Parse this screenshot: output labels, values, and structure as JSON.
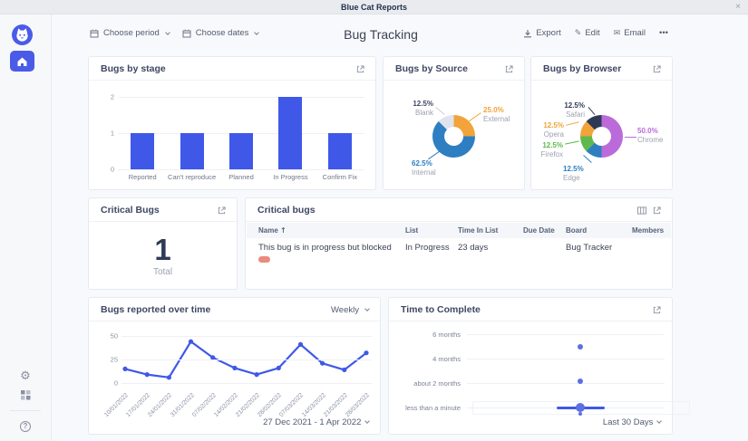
{
  "window": {
    "title": "Blue Cat Reports",
    "close": "×"
  },
  "sidebar": {
    "logo": "blue-cat-logo",
    "help_glyph": "?",
    "gear_glyph": "⚙"
  },
  "header": {
    "choose_period": "Choose period",
    "choose_dates": "Choose dates",
    "title": "Bug Tracking",
    "export_label": "Export",
    "edit_label": "Edit",
    "email_label": "Email",
    "more_label": "•••",
    "pencil_glyph": "✎",
    "envelope_glyph": "✉"
  },
  "cards": {
    "bugs_by_stage": {
      "title": "Bugs by stage",
      "chart": {
        "type": "bar",
        "categories": [
          "Reported",
          "Can't reproduce",
          "Planned",
          "In Progress",
          "Confirm Fix"
        ],
        "values": [
          1,
          1,
          1,
          2,
          1
        ],
        "ymax": 2,
        "yticks": [
          "2",
          "1",
          "0"
        ],
        "bar_color": "#3F58E8"
      }
    },
    "bugs_by_source": {
      "title": "Bugs by Source",
      "chart_type": "donut",
      "slices": [
        {
          "name": "External",
          "pct": "25.0%",
          "value": 25,
          "color": "#F2A33A"
        },
        {
          "name": "Internal",
          "pct": "62.5%",
          "value": 62.5,
          "color": "#2D7FC1"
        },
        {
          "name": "Blank",
          "pct": "12.5%",
          "value": 12.5,
          "color": "#E0E3EE",
          "pct_color": "#3E4763"
        }
      ]
    },
    "bugs_by_browser": {
      "title": "Bugs by Browser",
      "chart_type": "donut",
      "slices": [
        {
          "name": "Chrome",
          "pct": "50.0%",
          "value": 50,
          "color": "#BB6BD9"
        },
        {
          "name": "Edge",
          "pct": "12.5%",
          "value": 12.5,
          "color": "#2D7FC1"
        },
        {
          "name": "Firefox",
          "pct": "12.5%",
          "value": 12.5,
          "color": "#5FB94E"
        },
        {
          "name": "Opera",
          "pct": "12.5%",
          "value": 12.5,
          "color": "#F2A33A"
        },
        {
          "name": "Safari",
          "pct": "12.5%",
          "value": 12.5,
          "color": "#2E3A55"
        }
      ]
    },
    "critical_bugs_counter": {
      "title": "Critical Bugs",
      "value": "1",
      "label": "Total"
    },
    "critical_bugs_table": {
      "title": "Critical bugs",
      "sort_indicator": "↑",
      "columns": [
        "Name",
        "List",
        "Time In List",
        "Due Date",
        "Board",
        "Members"
      ],
      "rows": [
        {
          "name": "This bug is in progress but blocked",
          "list": "In Progress",
          "time_in_list": "23 days",
          "due_date": "",
          "board": "Bug Tracker",
          "members": ""
        }
      ]
    },
    "bugs_over_time": {
      "title": "Bugs reported over time",
      "period_selector": "Weekly",
      "date_range": "27 Dec 2021 - 1 Apr 2022",
      "chart": {
        "type": "line",
        "x": [
          "10/01/2022",
          "17/01/2022",
          "24/01/2022",
          "31/01/2022",
          "07/02/2022",
          "14/02/2022",
          "21/02/2022",
          "28/02/2022",
          "07/03/2022",
          "14/03/2022",
          "21/03/2022",
          "28/03/2022"
        ],
        "values": [
          15,
          9,
          6,
          44,
          27,
          16,
          9,
          16,
          41,
          21,
          14,
          32
        ],
        "ymax": 50,
        "yticks": [
          "50",
          "25",
          "0"
        ],
        "line_color": "#3F58E8"
      }
    },
    "time_to_complete": {
      "title": "Time to Complete",
      "footer_selector": "Last 30 Days",
      "chart": {
        "type": "scatter",
        "row_labels": [
          "6 months",
          "4 months",
          "about 2 months",
          "less than a minute"
        ],
        "points": [
          {
            "x": 119,
            "y": 18,
            "r": 3
          },
          {
            "x": 119,
            "y": 56,
            "r": 3
          },
          {
            "x": 119,
            "y": 85,
            "w": 53,
            "h": 3
          },
          {
            "x": 119,
            "y": 85,
            "r": 5
          },
          {
            "x": 119,
            "y": 92,
            "r": 2
          }
        ],
        "dot_color": "#5C6FE3"
      }
    }
  },
  "colors": {
    "accent": "#3F58E8",
    "sidebar_active": "#4A5BE8",
    "pill": "#E98B7E"
  }
}
